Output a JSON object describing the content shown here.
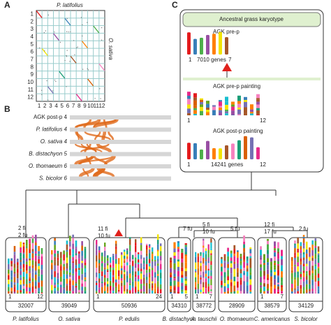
{
  "panel_a": {
    "label": "A",
    "x_title": "P. latifolius",
    "y_title": "O. sativa",
    "y_labels": [
      "1",
      "2",
      "3",
      "4",
      "5",
      "6",
      "7",
      "8",
      "9",
      "10",
      "11",
      "12"
    ],
    "x_labels": [
      "1",
      "2",
      "3",
      "4",
      "5",
      "6",
      "7",
      "8",
      "9",
      "10",
      "11",
      "12"
    ]
  },
  "panel_b": {
    "label": "B",
    "rows": [
      "AGK post-p 4",
      "P. latifolius 4",
      "O. sativa 4",
      "B. distachyon 5",
      "O. thomaeum 6",
      "S. bicolor 6"
    ]
  },
  "panel_c": {
    "label": "C",
    "title": "Ancestral grass karyotype",
    "pre_p": {
      "title": "AGK pre-p",
      "start": "1",
      "genes": "7010 genes",
      "end": "7"
    },
    "pre_p_painting": {
      "title": "AGK pre-p painting",
      "start": "1",
      "end": "12"
    },
    "post_p_painting": {
      "title": "AGK post-p painting",
      "start": "1",
      "genes": "14241 genes",
      "end": "12"
    }
  },
  "tree_events": [
    "2 fi",
    "2 fu",
    "11 fi",
    "10 fu",
    "7 fu",
    "5 fi",
    "10 fu",
    "5 fu",
    "12 fi",
    "17 fu",
    "2 fu"
  ],
  "species": [
    {
      "name": "P. latifolius",
      "genes": 32007,
      "start": "1",
      "end": "12"
    },
    {
      "name": "O. sativa",
      "genes": 39049
    },
    {
      "name": "P. edulis",
      "genes": 50936,
      "start": "1",
      "end": "24"
    },
    {
      "name": "B. distachyon",
      "genes": 34310,
      "start": "1",
      "end": "5"
    },
    {
      "name": "A. tauschii",
      "genes": 38772,
      "start": "1",
      "end": "7"
    },
    {
      "name": "O. thomaeum",
      "genes": 28909
    },
    {
      "name": "C. americanus",
      "genes": 38579,
      "start": "1",
      "end": "7"
    },
    {
      "name": "S. bicolor",
      "genes": 34129
    }
  ]
}
